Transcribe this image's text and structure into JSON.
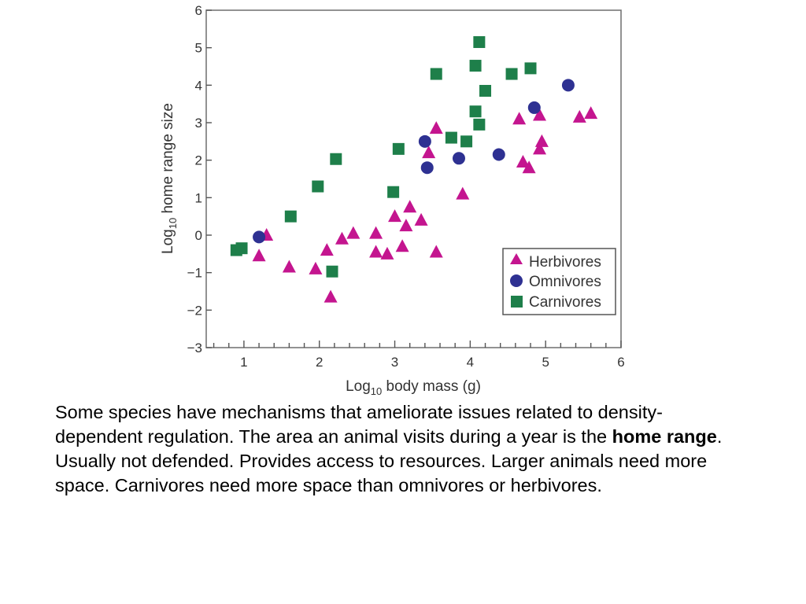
{
  "chart_data": {
    "type": "scatter",
    "xlabel": "Log10 body mass (g)",
    "ylabel": "Log10 home range size",
    "xlim": [
      0.5,
      6
    ],
    "ylim": [
      -3,
      6
    ],
    "xticks": [
      1,
      2,
      3,
      4,
      5,
      6
    ],
    "yticks": [
      -3,
      -2,
      -1,
      0,
      1,
      2,
      3,
      4,
      5,
      6
    ],
    "grid": false,
    "legend_position": "bottom-right",
    "series": [
      {
        "name": "Herbivores",
        "marker": "triangle",
        "color": "#c4158f",
        "points": [
          [
            1.2,
            -0.55
          ],
          [
            1.3,
            0.0
          ],
          [
            1.6,
            -0.85
          ],
          [
            1.95,
            -0.9
          ],
          [
            2.1,
            -0.4
          ],
          [
            2.15,
            -1.65
          ],
          [
            2.3,
            -0.1
          ],
          [
            2.45,
            0.05
          ],
          [
            2.75,
            0.05
          ],
          [
            2.75,
            -0.45
          ],
          [
            2.9,
            -0.5
          ],
          [
            3.0,
            0.5
          ],
          [
            3.1,
            -0.3
          ],
          [
            3.15,
            0.25
          ],
          [
            3.2,
            0.75
          ],
          [
            3.35,
            0.4
          ],
          [
            3.45,
            2.2
          ],
          [
            3.55,
            -0.45
          ],
          [
            3.55,
            2.85
          ],
          [
            3.9,
            1.1
          ],
          [
            4.65,
            3.1
          ],
          [
            4.7,
            1.95
          ],
          [
            4.78,
            1.8
          ],
          [
            4.92,
            3.2
          ],
          [
            4.92,
            2.3
          ],
          [
            4.95,
            2.5
          ],
          [
            5.45,
            3.15
          ],
          [
            5.6,
            3.25
          ]
        ]
      },
      {
        "name": "Omnivores",
        "marker": "circle",
        "color": "#2e3192",
        "points": [
          [
            1.2,
            -0.05
          ],
          [
            3.4,
            2.5
          ],
          [
            3.43,
            1.8
          ],
          [
            3.85,
            2.05
          ],
          [
            4.38,
            2.15
          ],
          [
            4.85,
            3.4
          ],
          [
            5.3,
            4.0
          ]
        ]
      },
      {
        "name": "Carnivores",
        "marker": "square",
        "color": "#1e7f4a",
        "points": [
          [
            0.9,
            -0.4
          ],
          [
            0.97,
            -0.35
          ],
          [
            1.62,
            0.5
          ],
          [
            1.98,
            1.3
          ],
          [
            2.17,
            -0.97
          ],
          [
            2.22,
            2.03
          ],
          [
            2.98,
            1.15
          ],
          [
            3.05,
            2.3
          ],
          [
            3.55,
            4.3
          ],
          [
            3.75,
            2.6
          ],
          [
            3.95,
            2.5
          ],
          [
            4.07,
            4.52
          ],
          [
            4.07,
            3.3
          ],
          [
            4.12,
            2.95
          ],
          [
            4.12,
            5.15
          ],
          [
            4.2,
            3.85
          ],
          [
            4.55,
            4.3
          ],
          [
            4.8,
            4.45
          ]
        ]
      }
    ]
  },
  "axis_label_parts": {
    "x_prefix": "Log",
    "x_sub": "10",
    "x_suffix": " body mass (g)",
    "y_prefix": "Log",
    "y_sub": "10",
    "y_suffix": " home range size",
    "minus_sign": "−"
  },
  "caption": {
    "text_before": "Some species have mechanisms that ameliorate issues related to density-dependent regulation.  The area an animal visits during a year is the ",
    "bold_term": "home range",
    "text_after": ".  Usually not defended.  Provides access to resources.  Larger animals need more space.  Carnivores need more space than omnivores or herbivores."
  }
}
